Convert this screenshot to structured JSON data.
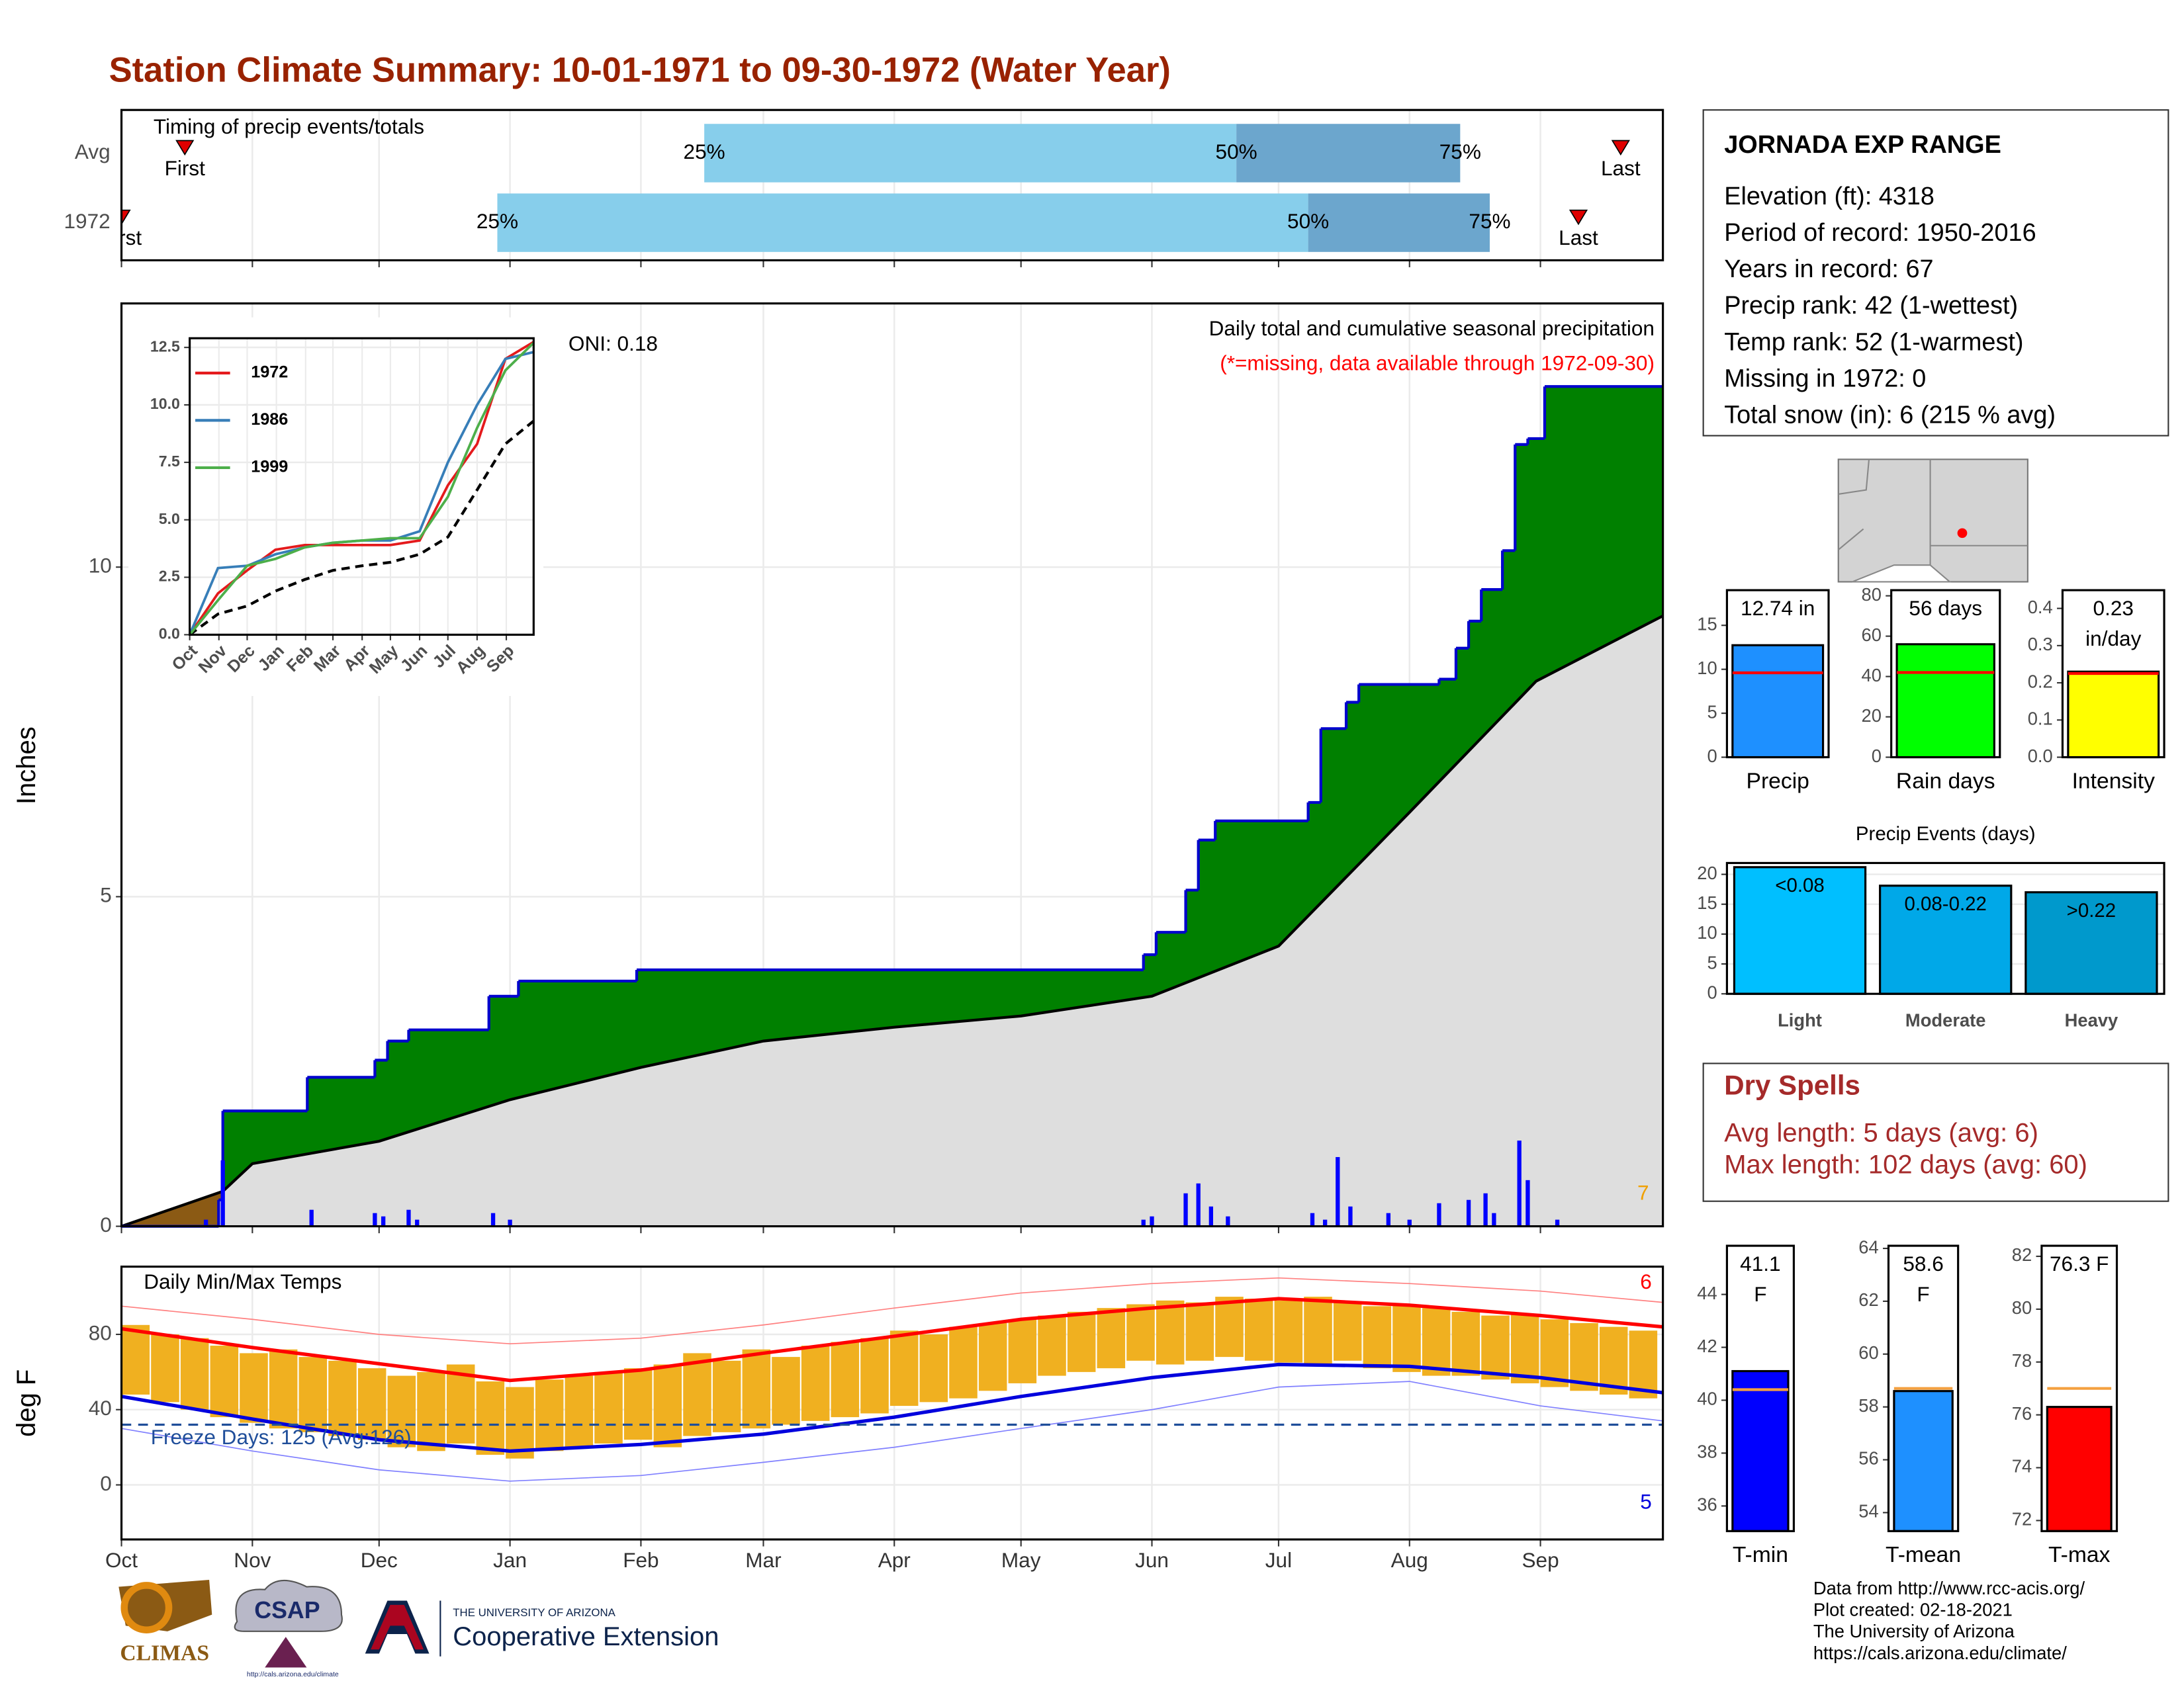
{
  "title": "Station Climate Summary: 10-01-1971 to 09-30-1972 (Water Year)",
  "chart_data": [
    {
      "type": "timing",
      "title": "Timing of precip events/totals",
      "xlim": [
        0,
        365
      ],
      "labels": {
        "first": "First",
        "last": "Last",
        "q25": "25%",
        "q50": "50%",
        "q75": "75%"
      },
      "colors": [
        "#87ceeb",
        "#6ca6cd"
      ],
      "marker_color": "#e00000",
      "rows": [
        {
          "label": "Avg",
          "first": 15,
          "q25": 138,
          "q50": 264,
          "q75": 317,
          "last": 355
        },
        {
          "label": "1972",
          "first": 0,
          "q25": 89,
          "q50": 281,
          "q75": 324,
          "last": 345
        }
      ]
    },
    {
      "type": "area",
      "ylabel": "Inches",
      "annotation": "Daily total and cumulative seasonal precipitation",
      "note": "(*=missing, data available through 1972-09-30)",
      "oni": "ONI: 0.18",
      "count_label": "7",
      "xlim": [
        0,
        365
      ],
      "ylim": [
        0,
        14
      ],
      "yticks": [
        0,
        5,
        10
      ],
      "grid": true,
      "cumulative": {
        "color": "#008000",
        "line_color": "#0000cd",
        "x": [
          0,
          23,
          24,
          44,
          60,
          63,
          68,
          87,
          94,
          122,
          242,
          245,
          252,
          255,
          259,
          281,
          284,
          290,
          293,
          312,
          316,
          319,
          322,
          327,
          330,
          333,
          337,
          365
        ],
        "values": [
          0,
          0.4,
          1.75,
          2.26,
          2.52,
          2.81,
          2.98,
          3.49,
          3.72,
          3.89,
          4.12,
          4.46,
          5.1,
          5.86,
          6.15,
          6.43,
          7.55,
          7.95,
          8.22,
          8.3,
          8.77,
          9.18,
          9.66,
          10.25,
          11.86,
          11.95,
          12.74,
          12.74
        ]
      },
      "average": {
        "color": "#dedede",
        "deficit_color": "#8b5a14",
        "line_color": "#000000",
        "x": [
          0,
          24,
          31,
          61,
          92,
          123,
          152,
          183,
          213,
          244,
          274,
          305,
          335,
          365
        ],
        "values": [
          0,
          0.53,
          0.95,
          1.29,
          1.92,
          2.41,
          2.81,
          3.02,
          3.19,
          3.49,
          4.25,
          6.28,
          8.27,
          9.26
        ]
      },
      "daily": {
        "color": "#0000ff",
        "x": [
          20,
          24,
          45,
          60,
          62,
          68,
          70,
          88,
          92,
          242,
          244,
          252,
          255,
          258,
          262,
          282,
          285,
          288,
          291,
          300,
          305,
          312,
          319,
          323,
          325,
          331,
          333,
          340
        ],
        "values": [
          0.1,
          1.0,
          0.25,
          0.2,
          0.15,
          0.25,
          0.1,
          0.2,
          0.1,
          0.1,
          0.15,
          0.5,
          0.65,
          0.3,
          0.15,
          0.2,
          0.1,
          1.05,
          0.3,
          0.2,
          0.1,
          0.35,
          0.4,
          0.5,
          0.2,
          1.3,
          0.7,
          0.1
        ]
      }
    },
    {
      "type": "line",
      "xlim": [
        0,
        365
      ],
      "ylim": [
        0,
        12.9
      ],
      "x": [
        0,
        30,
        61,
        91,
        122,
        152,
        183,
        213,
        244,
        274,
        305,
        335,
        365
      ],
      "xticks": [
        {
          "value": 0,
          "label": "Oct"
        },
        {
          "value": 31,
          "label": "Nov"
        },
        {
          "value": 61,
          "label": "Dec"
        },
        {
          "value": 92,
          "label": "Jan"
        },
        {
          "value": 123,
          "label": "Feb"
        },
        {
          "value": 152,
          "label": "Mar"
        },
        {
          "value": 183,
          "label": "Apr"
        },
        {
          "value": 213,
          "label": "May"
        },
        {
          "value": 244,
          "label": "Jun"
        },
        {
          "value": 274,
          "label": "Jul"
        },
        {
          "value": 305,
          "label": "Aug"
        },
        {
          "value": 336,
          "label": "Sep"
        }
      ],
      "yticks": [
        {
          "value": 0,
          "label": "0.0"
        },
        2.5,
        {
          "value": 5,
          "label": "5.0"
        },
        7.5,
        {
          "value": 10,
          "label": "10.0"
        },
        12.5
      ],
      "series": [
        {
          "name": "1972",
          "color": "#e41a1c",
          "values": [
            0,
            1.8,
            2.8,
            3.7,
            3.9,
            3.9,
            3.9,
            3.9,
            4.1,
            6.5,
            8.3,
            12.0,
            12.74
          ]
        },
        {
          "name": "1986",
          "color": "#377eb8",
          "values": [
            0,
            2.9,
            3.0,
            3.5,
            3.8,
            4.0,
            4.1,
            4.1,
            4.5,
            7.5,
            10.0,
            12.0,
            12.3
          ]
        },
        {
          "name": "1999",
          "color": "#4daf4a",
          "values": [
            0,
            1.5,
            3.0,
            3.3,
            3.8,
            4.0,
            4.1,
            4.2,
            4.2,
            6.0,
            9.0,
            11.5,
            12.7
          ]
        }
      ],
      "average": {
        "color": "#000000",
        "values": [
          0,
          0.9,
          1.25,
          1.9,
          2.4,
          2.8,
          3.0,
          3.15,
          3.5,
          4.25,
          6.3,
          8.3,
          9.3
        ]
      }
    },
    {
      "type": "range",
      "title": "Daily Min/Max Temps",
      "ylabel": "deg F",
      "xlim": [
        0,
        365
      ],
      "ylim": [
        -29,
        116
      ],
      "yticks": [
        0,
        40,
        80
      ],
      "grid": true,
      "color": "#f0b020",
      "xticks": [
        {
          "value": 0,
          "label": "Oct"
        },
        {
          "value": 31,
          "label": "Nov"
        },
        {
          "value": 61,
          "label": "Dec"
        },
        {
          "value": 92,
          "label": "Jan"
        },
        {
          "value": 123,
          "label": "Feb"
        },
        {
          "value": 152,
          "label": "Mar"
        },
        {
          "value": 183,
          "label": "Apr"
        },
        {
          "value": 213,
          "label": "May"
        },
        {
          "value": 244,
          "label": "Jun"
        },
        {
          "value": 274,
          "label": "Jul"
        },
        {
          "value": 305,
          "label": "Aug"
        },
        {
          "value": 336,
          "label": "Sep"
        }
      ],
      "x": [
        0,
        7,
        14,
        21,
        28,
        35,
        42,
        49,
        56,
        63,
        70,
        77,
        84,
        91,
        98,
        105,
        112,
        119,
        126,
        133,
        140,
        147,
        154,
        161,
        168,
        175,
        182,
        189,
        196,
        203,
        210,
        217,
        224,
        231,
        238,
        245,
        252,
        259,
        266,
        273,
        280,
        287,
        294,
        301,
        308,
        315,
        322,
        329,
        336,
        343,
        350,
        357
      ],
      "max": [
        85,
        80,
        78,
        74,
        70,
        72,
        68,
        66,
        62,
        58,
        60,
        64,
        55,
        52,
        56,
        58,
        60,
        62,
        64,
        70,
        66,
        72,
        68,
        74,
        76,
        78,
        82,
        80,
        84,
        86,
        88,
        90,
        92,
        94,
        96,
        98,
        97,
        100,
        99,
        98,
        100,
        97,
        95,
        96,
        94,
        92,
        90,
        91,
        88,
        86,
        84,
        82
      ],
      "min": [
        48,
        44,
        40,
        36,
        33,
        30,
        28,
        26,
        24,
        20,
        18,
        22,
        16,
        14,
        18,
        20,
        22,
        24,
        20,
        26,
        28,
        30,
        32,
        34,
        36,
        38,
        42,
        44,
        46,
        50,
        54,
        58,
        60,
        62,
        66,
        64,
        66,
        68,
        66,
        65,
        64,
        66,
        62,
        60,
        58,
        58,
        56,
        54,
        52,
        50,
        48,
        46
      ],
      "normals": {
        "x": [
          0,
          31,
          61,
          92,
          123,
          152,
          183,
          213,
          244,
          274,
          305,
          336,
          365
        ],
        "max": [
          83,
          73,
          64.4,
          55.5,
          61,
          70,
          79,
          88,
          94,
          99,
          95.5,
          90,
          84
        ],
        "min": [
          47,
          35,
          24,
          18,
          21.5,
          27,
          36,
          47,
          57,
          64,
          63,
          57,
          49
        ],
        "record_max": [
          95,
          88,
          80,
          75,
          78,
          85,
          94,
          102,
          107,
          110,
          107,
          103,
          97
        ],
        "record_min": [
          30,
          18,
          8,
          2,
          5,
          12,
          20,
          30,
          40,
          52,
          55,
          42,
          34
        ],
        "colors": [
          "#ff0000",
          "#0000dd",
          "#ff8080",
          "#8080ff"
        ]
      },
      "freeze": {
        "value": 32,
        "label": "Freeze Days: 125 (Avg:126)",
        "color": "#1f4e9a"
      },
      "record_high_count": "6",
      "record_low_count": "5"
    },
    {
      "type": "bar",
      "categories": [
        "Precip"
      ],
      "values": [
        12.74
      ],
      "value_labels": [
        "12.74 in"
      ],
      "average": 9.6,
      "color": "#1e90ff",
      "avg_color": "#ff0000",
      "ylim": [
        0,
        19
      ],
      "yticks": [
        0,
        5,
        10,
        15
      ]
    },
    {
      "type": "bar",
      "categories": [
        "Rain days"
      ],
      "values": [
        56
      ],
      "value_labels": [
        "56 days"
      ],
      "average": 42,
      "color": "#00ff00",
      "avg_color": "#ff0000",
      "ylim": [
        0,
        82.8
      ],
      "yticks": [
        0,
        20,
        40,
        60,
        80
      ]
    },
    {
      "type": "bar",
      "categories": [
        "Intensity"
      ],
      "values": [
        0.23
      ],
      "value_labels": [
        "0.23 in/day"
      ],
      "average": 0.225,
      "color": "#ffff00",
      "avg_color": "#ff0000",
      "ylim": [
        0,
        0.449
      ],
      "yticks": [
        {
          "value": 0,
          "label": "0.0"
        },
        0.1,
        0.2,
        0.3,
        0.4
      ]
    },
    {
      "type": "bar",
      "title": "Precip Events (days)",
      "categories": [
        "Light",
        "Moderate",
        "Heavy"
      ],
      "values": [
        21.2,
        18.1,
        17
      ],
      "ranges": [
        "<0.08",
        "0.08-0.22",
        ">0.22"
      ],
      "colors": [
        "#00bfff",
        "#00a8e8",
        "#0099cc"
      ],
      "ylim": [
        0,
        21.9
      ],
      "yticks": [
        0,
        5,
        10,
        15,
        20
      ],
      "grid": true
    },
    {
      "type": "bar",
      "categories": [
        "T-min"
      ],
      "values": [
        41.1
      ],
      "value_labels": [
        "41.1 F"
      ],
      "average": 40.4,
      "color": "#0000ff",
      "avg_color": "#f4a040",
      "ylim": [
        35.05,
        45.84
      ],
      "yticks": [
        36,
        38,
        40,
        42,
        44
      ]
    },
    {
      "type": "bar",
      "categories": [
        "T-mean"
      ],
      "values": [
        58.6
      ],
      "value_labels": [
        "58.6 F"
      ],
      "average": 58.7,
      "color": "#1e90ff",
      "avg_color": "#f4a040",
      "ylim": [
        53.3,
        64.1
      ],
      "yticks": [
        54,
        56,
        58,
        60,
        62,
        64
      ]
    },
    {
      "type": "bar",
      "categories": [
        "T-max"
      ],
      "values": [
        76.3
      ],
      "value_labels": [
        "76.3 F"
      ],
      "average": 77.0,
      "color": "#ff0000",
      "avg_color": "#f4a040",
      "ylim": [
        71.6,
        82.4
      ],
      "yticks": [
        72,
        74,
        76,
        78,
        80,
        82
      ]
    }
  ],
  "info": {
    "title": "JORNADA EXP RANGE",
    "lines": [
      "Elevation (ft): 4318",
      "Period of record: 1950-2016",
      "Years in record: 67",
      "Precip rank: 42 (1-wettest)",
      "Temp rank: 52 (1-warmest)",
      "Missing in 1972: 0",
      "Total snow (in): 6 (215 % avg)"
    ]
  },
  "dry_spells": {
    "title": "Dry Spells",
    "lines": [
      "Avg length: 5 days (avg: 6)",
      "Max length: 102 days (avg: 60)"
    ]
  },
  "footer": {
    "credits": [
      "Data from http://www.rcc-acis.org/",
      "Plot created: 02-18-2021",
      "The University of Arizona",
      "https://cals.arizona.edu/climate/"
    ],
    "logos": [
      "CLIMAS",
      "CSAP",
      "http://cals.arizona.edu/climate",
      "THE UNIVERSITY OF ARIZONA",
      "Cooperative Extension"
    ]
  }
}
